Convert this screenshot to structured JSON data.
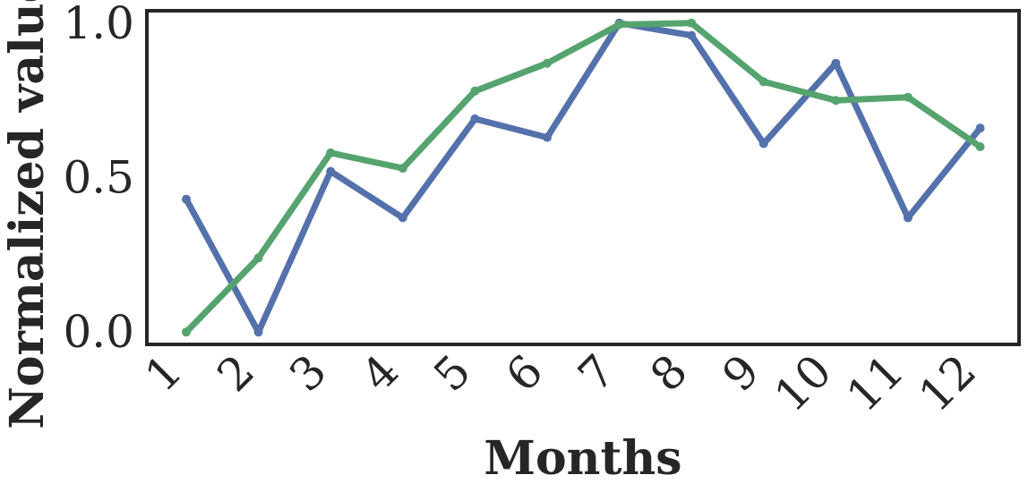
{
  "chart_data": {
    "type": "line",
    "title": "",
    "xlabel": "Months",
    "ylabel": "Normalized value",
    "categories": [
      "1",
      "2",
      "3",
      "4",
      "5",
      "6",
      "7",
      "8",
      "9",
      "10",
      "11",
      "12"
    ],
    "ylim": [
      -0.04,
      1.04
    ],
    "yticks": [
      "0.0",
      "0.5",
      "1.0"
    ],
    "grid": false,
    "series": [
      {
        "color": "#5471ab",
        "values": [
          0.43,
          0.0,
          0.52,
          0.37,
          0.69,
          0.63,
          1.0,
          0.96,
          0.61,
          0.87,
          0.37,
          0.66
        ]
      },
      {
        "color": "#55a36f",
        "values": [
          0.0,
          0.24,
          0.58,
          0.53,
          0.78,
          0.87,
          0.995,
          1.0,
          0.81,
          0.75,
          0.76,
          0.6
        ]
      }
    ]
  }
}
